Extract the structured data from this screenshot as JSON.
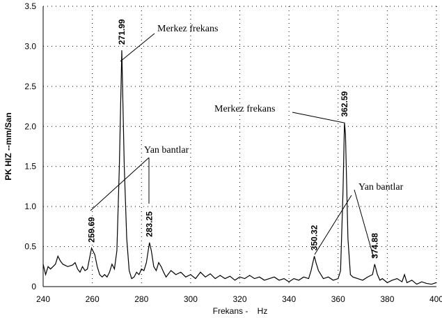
{
  "chart_data": {
    "type": "line",
    "y_label": "PK HIZ --mm/San",
    "x_label": "Frekans -    Hz",
    "xlim": [
      240,
      400
    ],
    "xticks": [
      240,
      260,
      280,
      300,
      320,
      340,
      360,
      380,
      400
    ],
    "ylim": [
      0,
      3.5
    ],
    "yticks": [
      0,
      0.5,
      {
        "value": 1,
        "label": "1.0"
      },
      1.5,
      {
        "value": 2,
        "label": "2.0"
      },
      2.5,
      {
        "value": 3,
        "label": "3.0"
      },
      3.5
    ],
    "grid": true,
    "x": [
      240,
      241,
      242,
      243,
      245,
      246,
      247,
      248,
      250,
      252,
      253,
      254,
      255,
      256,
      257,
      258,
      259.69,
      261,
      262,
      263,
      264,
      265,
      266,
      267,
      268,
      269,
      270,
      271,
      271.99,
      273,
      274,
      275,
      276,
      277,
      278,
      279,
      280,
      281,
      282,
      283.25,
      284,
      285,
      286,
      287,
      288,
      289,
      290,
      292,
      294,
      296,
      298,
      300,
      302,
      304,
      306,
      308,
      310,
      312,
      314,
      316,
      318,
      320,
      322,
      324,
      326,
      328,
      330,
      332,
      334,
      336,
      338,
      340,
      342,
      344,
      346,
      348,
      349,
      350.32,
      351,
      352,
      353,
      354,
      356,
      358,
      360,
      361,
      362,
      362.59,
      363,
      364,
      365,
      366,
      368,
      370,
      372,
      374,
      374.88,
      376,
      377,
      378,
      380,
      382,
      384,
      386,
      387,
      388,
      390,
      392,
      394,
      396,
      398,
      400
    ],
    "series": [
      {
        "color": "#000000",
        "values": [
          0.28,
          0.15,
          0.25,
          0.22,
          0.28,
          0.38,
          0.32,
          0.28,
          0.25,
          0.27,
          0.3,
          0.22,
          0.18,
          0.25,
          0.2,
          0.22,
          0.48,
          0.4,
          0.25,
          0.15,
          0.12,
          0.15,
          0.12,
          0.18,
          0.28,
          0.22,
          0.45,
          1.5,
          2.95,
          1.5,
          0.6,
          0.2,
          0.1,
          0.12,
          0.18,
          0.15,
          0.22,
          0.2,
          0.3,
          0.55,
          0.45,
          0.25,
          0.2,
          0.3,
          0.25,
          0.18,
          0.12,
          0.2,
          0.15,
          0.18,
          0.12,
          0.15,
          0.1,
          0.18,
          0.12,
          0.16,
          0.1,
          0.14,
          0.1,
          0.13,
          0.08,
          0.12,
          0.1,
          0.14,
          0.1,
          0.12,
          0.08,
          0.1,
          0.12,
          0.08,
          0.1,
          0.06,
          0.1,
          0.08,
          0.12,
          0.1,
          0.2,
          0.38,
          0.3,
          0.2,
          0.15,
          0.1,
          0.12,
          0.08,
          0.1,
          0.2,
          1.2,
          2.05,
          1.9,
          0.6,
          0.15,
          0.12,
          0.1,
          0.08,
          0.12,
          0.15,
          0.28,
          0.15,
          0.08,
          0.1,
          0.05,
          0.08,
          0.1,
          0.06,
          0.15,
          0.05,
          0.08,
          0.03,
          0.06,
          0.04,
          0.03,
          0.05
        ]
      }
    ],
    "peaks": [
      259.69,
      271.99,
      283.25,
      350.32,
      362.59,
      374.88
    ],
    "annotations": [
      "Merkez frekans",
      "Yan bantlar",
      "Merkez frekans",
      "Yan bantlar"
    ]
  }
}
